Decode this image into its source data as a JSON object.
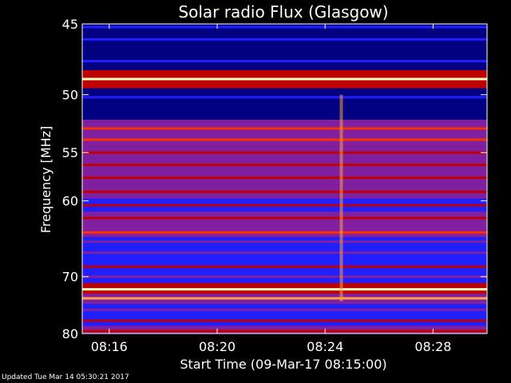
{
  "chart_data": {
    "type": "heatmap",
    "title": "Solar radio Flux (Glasgow)",
    "xlabel": "Start Time (09-Mar-17 08:15:00)",
    "ylabel": "Frequency [MHz]",
    "x_unit": "minutes after 08:15:00",
    "xlim": [
      0,
      15
    ],
    "ylim_note": "reciprocal-style frequency axis, higher frequency downward",
    "ylim": [
      45,
      80
    ],
    "x_ticks": [
      {
        "value": 1,
        "label": "08:16"
      },
      {
        "value": 5,
        "label": "08:20"
      },
      {
        "value": 9,
        "label": "08:24"
      },
      {
        "value": 13,
        "label": "08:28"
      }
    ],
    "y_ticks": [
      {
        "value": 45,
        "label": "45"
      },
      {
        "value": 50,
        "label": "50"
      },
      {
        "value": 55,
        "label": "55"
      },
      {
        "value": 60,
        "label": "60"
      },
      {
        "value": 70,
        "label": "70"
      },
      {
        "value": 80,
        "label": "80"
      }
    ],
    "colormap": [
      "#000080",
      "#2020ff",
      "#8020a0",
      "#c00000",
      "#ff3000",
      "#ffa040",
      "#ffffc0"
    ],
    "bands": [
      {
        "freq": 45.2,
        "intensity": 0.1
      },
      {
        "freq": 46.0,
        "intensity": 0.15
      },
      {
        "freq": 47.5,
        "intensity": 0.12
      },
      {
        "freq": 48.8,
        "intensity": 1.0
      },
      {
        "freq": 50.2,
        "intensity": 0.1
      },
      {
        "freq": 51.3,
        "intensity": 0.05
      },
      {
        "freq": 52.8,
        "intensity": 0.7
      },
      {
        "freq": 53.8,
        "intensity": 0.6
      },
      {
        "freq": 55.0,
        "intensity": 0.55
      },
      {
        "freq": 56.2,
        "intensity": 0.5
      },
      {
        "freq": 57.5,
        "intensity": 0.55
      },
      {
        "freq": 59.0,
        "intensity": 0.5
      },
      {
        "freq": 60.5,
        "intensity": 0.45
      },
      {
        "freq": 62.0,
        "intensity": 0.55
      },
      {
        "freq": 63.8,
        "intensity": 0.7
      },
      {
        "freq": 65.0,
        "intensity": 0.4
      },
      {
        "freq": 66.5,
        "intensity": 0.25
      },
      {
        "freq": 68.5,
        "intensity": 0.45
      },
      {
        "freq": 70.0,
        "intensity": 0.35
      },
      {
        "freq": 72.0,
        "intensity": 0.95
      },
      {
        "freq": 73.5,
        "intensity": 0.75
      },
      {
        "freq": 75.5,
        "intensity": 0.4
      },
      {
        "freq": 77.5,
        "intensity": 0.45
      },
      {
        "freq": 79.5,
        "intensity": 0.5
      }
    ],
    "event": {
      "time": 9.6,
      "freq_range": [
        50,
        74
      ],
      "intensity": 0.8
    }
  },
  "footer": "Updated Tue Mar 14 05:30:21 2017"
}
